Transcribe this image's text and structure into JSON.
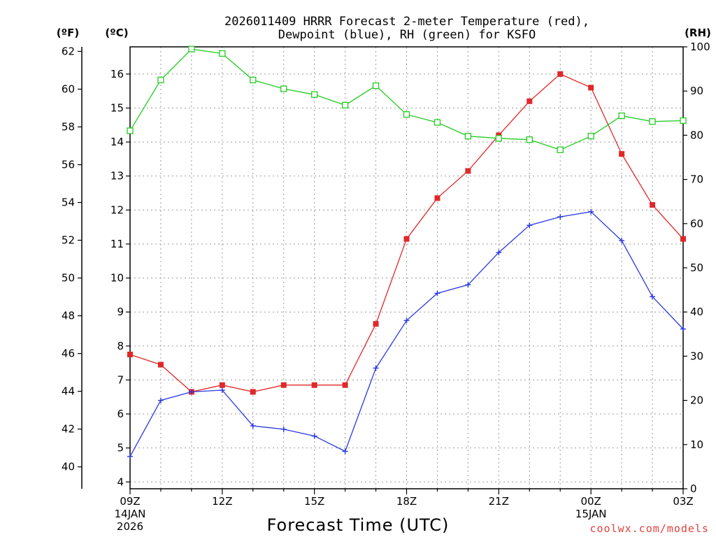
{
  "chart_data": {
    "type": "line",
    "title": "2026011409 HRRR Forecast 2-meter Temperature (red),",
    "subtitle": "Dewpoint (blue), RH (green) for KSFO",
    "xlabel": "Forecast Time (UTC)",
    "left_unit_f": "(ºF)",
    "left_unit_c": "(ºC)",
    "right_unit": "(RH)",
    "credit": "coolwx.com/models",
    "x": [
      "09Z",
      "10Z",
      "11Z",
      "12Z",
      "13Z",
      "14Z",
      "15Z",
      "16Z",
      "17Z",
      "18Z",
      "19Z",
      "20Z",
      "21Z",
      "22Z",
      "23Z",
      "00Z",
      "01Z",
      "02Z",
      "03Z"
    ],
    "x_ticks": [
      {
        "label": "09Z",
        "sub1": "14JAN",
        "sub2": "2026",
        "index": 0
      },
      {
        "label": "12Z",
        "sub1": "",
        "sub2": "",
        "index": 3
      },
      {
        "label": "15Z",
        "sub1": "",
        "sub2": "",
        "index": 6
      },
      {
        "label": "18Z",
        "sub1": "",
        "sub2": "",
        "index": 9
      },
      {
        "label": "21Z",
        "sub1": "",
        "sub2": "",
        "index": 12
      },
      {
        "label": "00Z",
        "sub1": "15JAN",
        "sub2": "",
        "index": 15
      },
      {
        "label": "03Z",
        "sub1": "",
        "sub2": "",
        "index": 18
      }
    ],
    "celsius_axis": {
      "min": 3.8,
      "max": 16.8,
      "ticks": [
        4,
        5,
        6,
        7,
        8,
        9,
        10,
        11,
        12,
        13,
        14,
        15,
        16
      ]
    },
    "fahrenheit_ticks": [
      40,
      42,
      44,
      46,
      48,
      50,
      52,
      54,
      56,
      58,
      60,
      62
    ],
    "rh_axis": {
      "min": 0,
      "max": 100,
      "ticks": [
        0,
        10,
        20,
        30,
        40,
        50,
        60,
        70,
        80,
        90,
        100
      ]
    },
    "grid": true,
    "series": [
      {
        "key": "temperature",
        "unit": "C",
        "color": "#e02828",
        "marker": "filled-square",
        "values": [
          7.75,
          7.45,
          6.65,
          6.85,
          6.65,
          6.85,
          6.85,
          6.85,
          8.65,
          11.15,
          12.35,
          13.15,
          14.2,
          15.2,
          16.0,
          15.6,
          13.65,
          12.15,
          11.15
        ]
      },
      {
        "key": "dewpoint",
        "unit": "C",
        "color": "#2838e0",
        "marker": "plus",
        "values": [
          4.75,
          6.4,
          6.65,
          6.7,
          5.65,
          5.55,
          5.35,
          4.9,
          7.35,
          8.75,
          9.55,
          9.8,
          10.75,
          11.55,
          11.8,
          11.95,
          11.1,
          9.45,
          8.5
        ]
      },
      {
        "key": "rh",
        "unit": "%",
        "color": "#22cc22",
        "marker": "open-square",
        "values": [
          81,
          92.5,
          99.5,
          98.5,
          92.5,
          90.5,
          89.2,
          86.8,
          91.2,
          84.7,
          82.9,
          79.8,
          79.3,
          79.0,
          76.7,
          79.8,
          84.4,
          83.1,
          83.3
        ]
      }
    ]
  }
}
